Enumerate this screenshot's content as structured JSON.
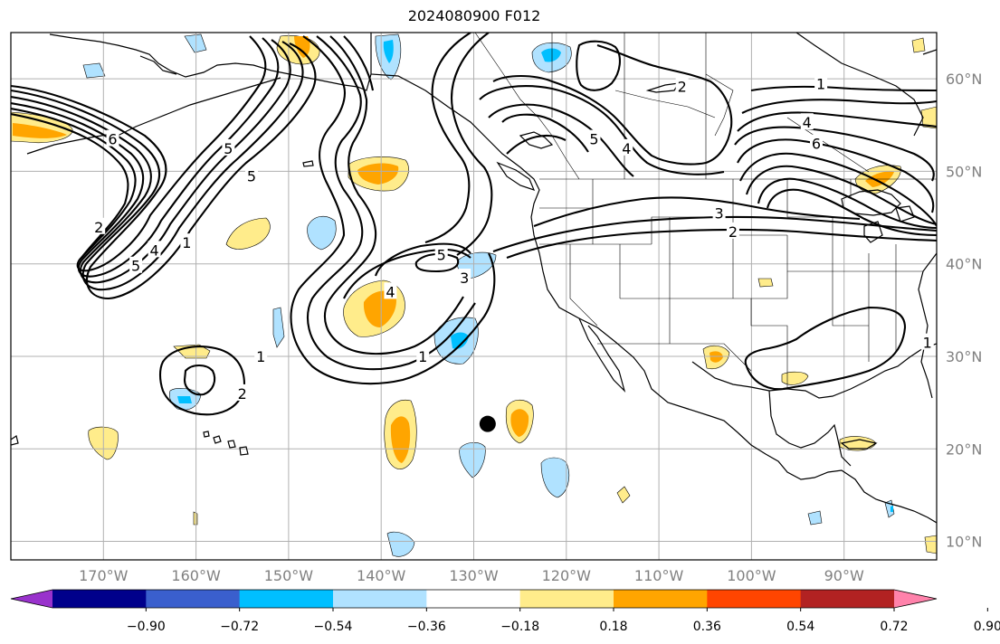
{
  "title": "2024080900 F012",
  "map": {
    "lon_range": [
      -180,
      -80
    ],
    "lat_range": [
      8,
      65
    ],
    "lon_ticks": [
      {
        "lon": -170,
        "label": "170°W"
      },
      {
        "lon": -160,
        "label": "160°W"
      },
      {
        "lon": -150,
        "label": "150°W"
      },
      {
        "lon": -140,
        "label": "140°W"
      },
      {
        "lon": -130,
        "label": "130°W"
      },
      {
        "lon": -120,
        "label": "120°W"
      },
      {
        "lon": -110,
        "label": "110°W"
      },
      {
        "lon": -100,
        "label": "100°W"
      },
      {
        "lon": -90,
        "label": "90°W"
      }
    ],
    "lat_ticks": [
      {
        "lat": 10,
        "label": "10°N"
      },
      {
        "lat": 20,
        "label": "20°N"
      },
      {
        "lat": 30,
        "label": "30°N"
      },
      {
        "lat": 40,
        "label": "40°N"
      },
      {
        "lat": 50,
        "label": "50°N"
      },
      {
        "lat": 60,
        "label": "60°N"
      }
    ],
    "gridlines": true,
    "marker": {
      "lon": -128.5,
      "lat": 22.7,
      "color": "#000000"
    }
  },
  "contour_labels": [
    {
      "text": "6",
      "lon": -169,
      "lat": 53.5
    },
    {
      "text": "5",
      "lon": -154,
      "lat": 49.5
    },
    {
      "text": "5",
      "lon": -156.5,
      "lat": 52.5
    },
    {
      "text": "2",
      "lon": -170.5,
      "lat": 44
    },
    {
      "text": "5",
      "lon": -166.5,
      "lat": 39.8
    },
    {
      "text": "4",
      "lon": -164.5,
      "lat": 41.5
    },
    {
      "text": "1",
      "lon": -161,
      "lat": 42.3
    },
    {
      "text": "1",
      "lon": -153,
      "lat": 30
    },
    {
      "text": "2",
      "lon": -155,
      "lat": 26
    },
    {
      "text": "5",
      "lon": -133.5,
      "lat": 41
    },
    {
      "text": "4",
      "lon": -139,
      "lat": 37
    },
    {
      "text": "3",
      "lon": -131,
      "lat": 38.5
    },
    {
      "text": "1",
      "lon": -135.5,
      "lat": 30
    },
    {
      "text": "5",
      "lon": -117,
      "lat": 53.5
    },
    {
      "text": "4",
      "lon": -113.5,
      "lat": 52.5
    },
    {
      "text": "2",
      "lon": -107.5,
      "lat": 59.2
    },
    {
      "text": "1",
      "lon": -92.5,
      "lat": 59.5
    },
    {
      "text": "4",
      "lon": -94,
      "lat": 55.3
    },
    {
      "text": "6",
      "lon": -93,
      "lat": 53
    },
    {
      "text": "3",
      "lon": -103.5,
      "lat": 45.5
    },
    {
      "text": "2",
      "lon": -102,
      "lat": 43.5
    },
    {
      "text": "1",
      "lon": -81,
      "lat": 31.5
    }
  ],
  "colorbar": {
    "colors": [
      "#9932cc",
      "#00008b",
      "#3a5fcd",
      "#00bfff",
      "#b0e2ff",
      "#ffffff",
      "#ffec8b",
      "#ffa500",
      "#ff4500",
      "#b22222",
      "#ff82ab"
    ],
    "ticks": [
      "−0.90",
      "−0.72",
      "−0.54",
      "−0.36",
      "−0.18",
      "0.18",
      "0.36",
      "0.54",
      "0.72",
      "0.90"
    ]
  }
}
